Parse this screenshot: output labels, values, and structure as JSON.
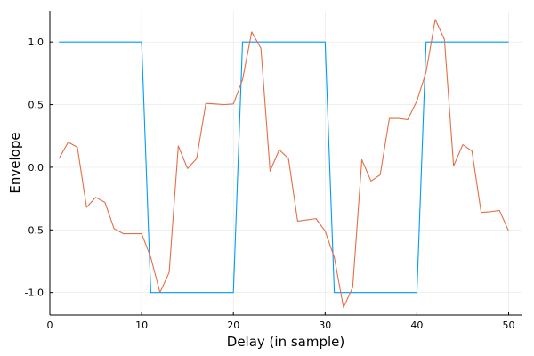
{
  "chart_data": {
    "type": "line",
    "xlabel": "Delay (in sample)",
    "ylabel": "Envelope",
    "xlim": [
      0,
      51.5
    ],
    "ylim": [
      -1.18,
      1.25
    ],
    "grid": true,
    "legend": "none",
    "xticks": [
      0,
      10,
      20,
      30,
      40,
      50
    ],
    "xtick_labels": [
      "0",
      "10",
      "20",
      "30",
      "40",
      "50"
    ],
    "yticks": [
      -1.0,
      -0.5,
      0.0,
      0.5,
      1.0
    ],
    "ytick_labels": [
      "-1.0",
      "-0.5",
      "0.0",
      "0.5",
      "1.0"
    ],
    "series": [
      {
        "color": "#009AFA",
        "x": [
          1,
          2,
          3,
          4,
          5,
          6,
          7,
          8,
          9,
          10,
          11,
          12,
          13,
          14,
          15,
          16,
          17,
          18,
          19,
          20,
          21,
          22,
          23,
          24,
          25,
          26,
          27,
          28,
          29,
          30,
          31,
          32,
          33,
          34,
          35,
          36,
          37,
          38,
          39,
          40,
          41,
          42,
          43,
          44,
          45,
          46,
          47,
          48,
          49,
          50
        ],
        "y": [
          1,
          1,
          1,
          1,
          1,
          1,
          1,
          1,
          1,
          1,
          -1,
          -1,
          -1,
          -1,
          -1,
          -1,
          -1,
          -1,
          -1,
          -1,
          1,
          1,
          1,
          1,
          1,
          1,
          1,
          1,
          1,
          1,
          -1,
          -1,
          -1,
          -1,
          -1,
          -1,
          -1,
          -1,
          -1,
          -1,
          1,
          1,
          1,
          1,
          1,
          1,
          1,
          1,
          1,
          1
        ]
      },
      {
        "color": "#E36F47",
        "x": [
          1,
          2,
          3,
          4,
          5,
          6,
          7,
          8,
          9,
          10,
          11,
          12,
          13,
          14,
          15,
          16,
          17,
          18,
          19,
          20,
          21,
          22,
          23,
          24,
          25,
          26,
          27,
          28,
          29,
          30,
          31,
          32,
          33,
          34,
          35,
          36,
          37,
          38,
          39,
          40,
          41,
          42,
          43,
          44,
          45,
          46,
          47,
          48,
          49,
          50
        ],
        "y": [
          0.07,
          0.2,
          0.16,
          -0.32,
          -0.24,
          -0.28,
          -0.49,
          -0.53,
          -0.53,
          -0.53,
          -0.72,
          -1.0,
          -0.84,
          0.17,
          -0.01,
          0.07,
          0.51,
          0.505,
          0.5,
          0.505,
          0.7,
          1.08,
          0.95,
          -0.03,
          0.14,
          0.07,
          -0.43,
          -0.42,
          -0.41,
          -0.51,
          -0.72,
          -1.12,
          -0.96,
          0.06,
          -0.11,
          -0.06,
          0.39,
          0.39,
          0.38,
          0.53,
          0.76,
          1.18,
          1.02,
          0.01,
          0.18,
          0.13,
          -0.36,
          -0.355,
          -0.345,
          -0.51
        ]
      }
    ]
  }
}
